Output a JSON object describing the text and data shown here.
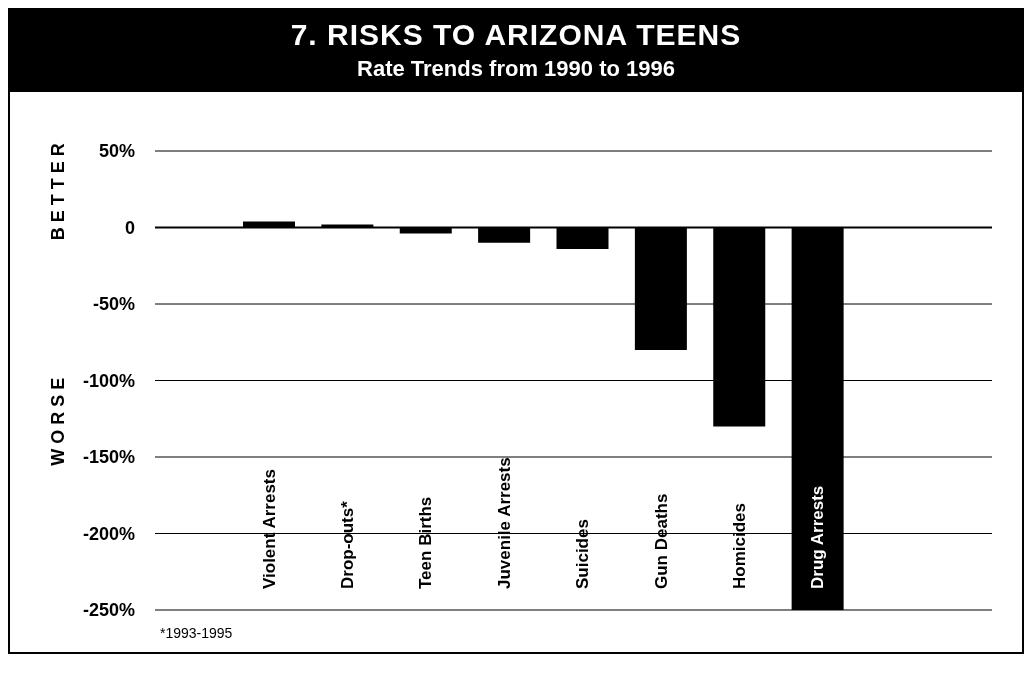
{
  "chart_data": {
    "type": "bar",
    "title": "7. RISKS TO ARIZONA TEENS",
    "subtitle": "Rate Trends from 1990 to 1996",
    "categories": [
      "Violent Arrests",
      "Drop-outs*",
      "Teen Births",
      "Juvenile Arrests",
      "Suicides",
      "Gun Deaths",
      "Homicides",
      "Drug Arrests"
    ],
    "values": [
      4,
      2,
      -4,
      -10,
      -14,
      -80,
      -130,
      -250
    ],
    "color": "#000000",
    "ylim": [
      -250,
      50
    ],
    "yticks": [
      {
        "value": 50,
        "label": "50%"
      },
      {
        "value": 0,
        "label": "0"
      },
      {
        "value": -50,
        "label": "-50%"
      },
      {
        "value": -100,
        "label": "-100%"
      },
      {
        "value": -150,
        "label": "-150%"
      },
      {
        "value": -200,
        "label": "-200%"
      },
      {
        "value": -250,
        "label": "-250%"
      }
    ],
    "grid": "y",
    "ref_lines": [
      {
        "axis": "y",
        "value": 0
      }
    ],
    "annotations": [
      "BETTER",
      "WORSE",
      "*1993-1995"
    ]
  }
}
